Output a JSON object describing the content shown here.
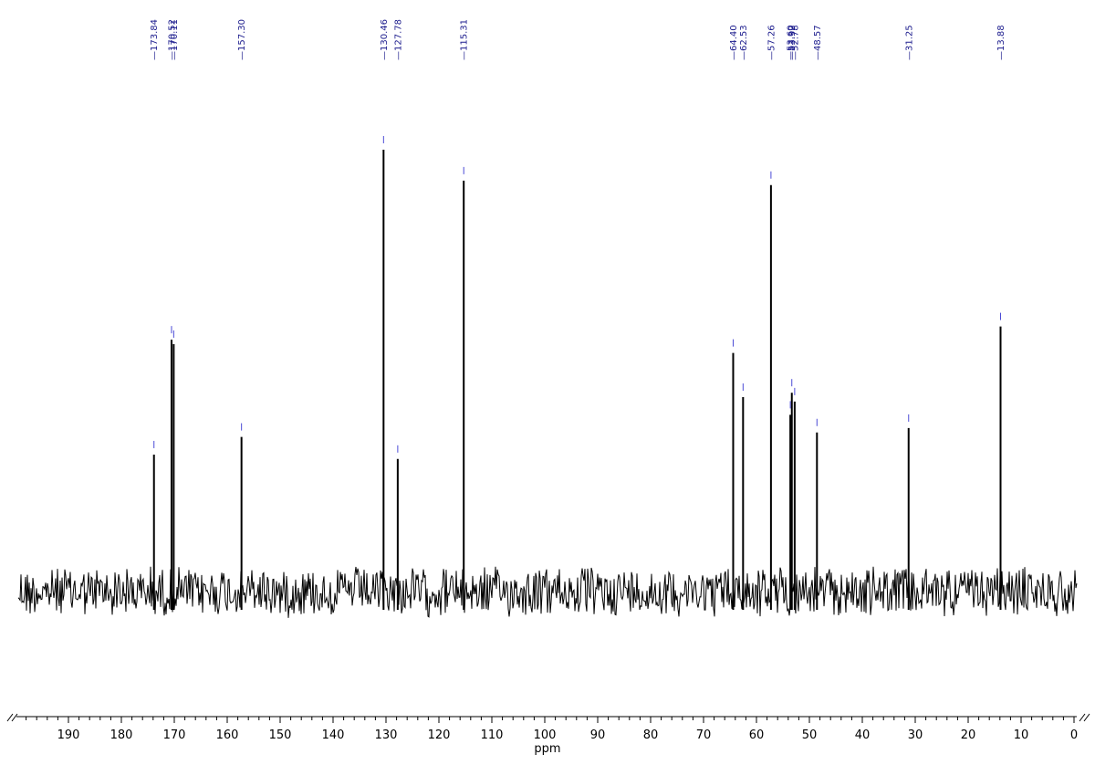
{
  "chart_data": {
    "type": "line",
    "title": "",
    "xlabel": "ppm",
    "ylabel": "",
    "xlim": [
      199,
      0
    ],
    "x_reversed": true,
    "grid": false,
    "legend": "none",
    "x_ticks": [
      190,
      180,
      170,
      160,
      150,
      140,
      130,
      120,
      110,
      100,
      90,
      80,
      70,
      60,
      50,
      40,
      30,
      20,
      10,
      0
    ],
    "x_tick_labels": [
      "190",
      "180",
      "170",
      "160",
      "150",
      "140",
      "130",
      "120",
      "110",
      "100",
      "90",
      "80",
      "70",
      "60",
      "50",
      "40",
      "30",
      "20",
      "10",
      "0"
    ],
    "peak_labels": [
      "173.84",
      "170.52",
      "170.11",
      "157.30",
      "130.46",
      "127.78",
      "115.31",
      "64.40",
      "62.53",
      "57.26",
      "53.60",
      "53.32",
      "52.78",
      "48.57",
      "31.25",
      "13.88"
    ],
    "peaks": [
      {
        "ppm": 173.84,
        "intensity": 0.31
      },
      {
        "ppm": 170.52,
        "intensity": 0.57
      },
      {
        "ppm": 170.11,
        "intensity": 0.56
      },
      {
        "ppm": 157.3,
        "intensity": 0.35
      },
      {
        "ppm": 130.46,
        "intensity": 1.0
      },
      {
        "ppm": 127.78,
        "intensity": 0.3
      },
      {
        "ppm": 115.31,
        "intensity": 0.93
      },
      {
        "ppm": 64.4,
        "intensity": 0.54
      },
      {
        "ppm": 62.53,
        "intensity": 0.44
      },
      {
        "ppm": 57.26,
        "intensity": 0.92
      },
      {
        "ppm": 53.6,
        "intensity": 0.4
      },
      {
        "ppm": 53.32,
        "intensity": 0.45
      },
      {
        "ppm": 52.78,
        "intensity": 0.43
      },
      {
        "ppm": 48.57,
        "intensity": 0.36
      },
      {
        "ppm": 31.25,
        "intensity": 0.37
      },
      {
        "ppm": 13.88,
        "intensity": 0.6
      }
    ],
    "colors": {
      "trace": "#000000",
      "peak_label": "#1a1a8c",
      "peak_marker": "#4b4bd6",
      "axis": "#000000"
    }
  }
}
